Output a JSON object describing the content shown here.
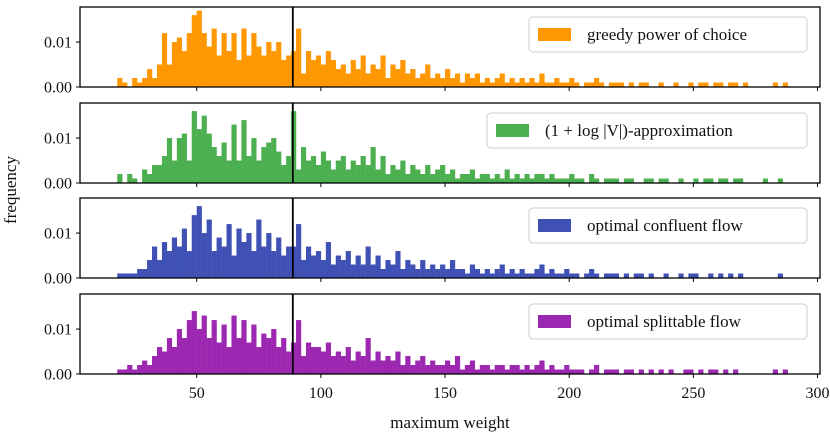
{
  "chart_data": {
    "type": "bar",
    "subtype": "stacked-panels-histogram",
    "xlabel": "maximum weight",
    "ylabel": "frequency",
    "xlim": [
      3,
      301
    ],
    "ylim": [
      0,
      0.0178
    ],
    "xticks": [
      50,
      100,
      150,
      200,
      250,
      300
    ],
    "xtick_labels": [
      "50",
      "100",
      "150",
      "200",
      "250",
      "300"
    ],
    "yticks": [
      0.0,
      0.01
    ],
    "ytick_labels": [
      "0.00",
      "0.01"
    ],
    "vertical_line_x": 88.7,
    "bin_start": 18,
    "bin_width": 2,
    "legend_placement": "top-right",
    "grid": false,
    "series": [
      {
        "name": "greedy power of choice",
        "color": "#ff9800",
        "values": [
          0.002,
          0.001,
          0,
          0.002,
          0.001,
          0.002,
          0.004,
          0.002,
          0.005,
          0.012,
          0.005,
          0.01,
          0.011,
          0.008,
          0.012,
          0.016,
          0.017,
          0.012,
          0.009,
          0.013,
          0.007,
          0.012,
          0.008,
          0.012,
          0.006,
          0.013,
          0.007,
          0.012,
          0.009,
          0.007,
          0.01,
          0.008,
          0.01,
          0.006,
          0.007,
          0.008,
          0.013,
          0.003,
          0.008,
          0.006,
          0.007,
          0.005,
          0.008,
          0.006,
          0.004,
          0.005,
          0.003,
          0.006,
          0.004,
          0.007,
          0.003,
          0.005,
          0.004,
          0.007,
          0.002,
          0.005,
          0.004,
          0.006,
          0.003,
          0.004,
          0.002,
          0.003,
          0.005,
          0.002,
          0.003,
          0.002,
          0.004,
          0.002,
          0.003,
          0.001,
          0.003,
          0.002,
          0.003,
          0.001,
          0.002,
          0.001,
          0.002,
          0.003,
          0.001,
          0.002,
          0.001,
          0.002,
          0.001,
          0.002,
          0.001,
          0.003,
          0.001,
          0.001,
          0.002,
          0.001,
          0.001,
          0.002,
          0.001,
          0,
          0.001,
          0.001,
          0.002,
          0.001,
          0,
          0.001,
          0.001,
          0.001,
          0,
          0.001,
          0,
          0.001,
          0.001,
          0,
          0,
          0.001,
          0,
          0,
          0.001,
          0,
          0,
          0.001,
          0,
          0.001,
          0.001,
          0,
          0.001,
          0.001,
          0,
          0.001,
          0.001,
          0,
          0.001,
          0,
          0,
          0,
          0,
          0,
          0.001,
          0,
          0.001
        ]
      },
      {
        "name": "(1 + log |V|)-approximation",
        "color": "#4caf50",
        "values": [
          0.002,
          0,
          0.002,
          0.001,
          0,
          0.003,
          0.002,
          0.004,
          0.004,
          0.006,
          0.01,
          0.005,
          0.01,
          0.011,
          0.005,
          0.016,
          0.012,
          0.015,
          0.011,
          0.008,
          0.006,
          0.009,
          0.005,
          0.013,
          0.005,
          0.014,
          0.006,
          0.01,
          0.005,
          0.008,
          0.009,
          0.01,
          0.007,
          0.004,
          0.006,
          0.016,
          0.003,
          0.008,
          0.005,
          0.006,
          0.004,
          0.007,
          0.005,
          0.003,
          0.005,
          0.006,
          0.003,
          0.005,
          0.004,
          0.006,
          0.004,
          0.008,
          0.003,
          0.006,
          0.002,
          0.004,
          0.003,
          0.005,
          0.002,
          0.004,
          0.003,
          0.002,
          0.004,
          0.002,
          0.003,
          0.004,
          0.002,
          0.003,
          0.001,
          0.002,
          0.002,
          0.003,
          0.001,
          0.002,
          0.002,
          0.001,
          0.002,
          0.001,
          0.003,
          0.001,
          0.002,
          0.001,
          0.002,
          0.001,
          0.002,
          0.002,
          0.001,
          0.002,
          0.001,
          0.001,
          0.001,
          0.002,
          0.001,
          0.001,
          0,
          0.002,
          0.001,
          0,
          0.001,
          0.001,
          0.001,
          0,
          0.001,
          0.001,
          0,
          0,
          0.001,
          0.001,
          0,
          0.001,
          0.001,
          0,
          0,
          0.001,
          0,
          0,
          0.001,
          0,
          0.001,
          0.001,
          0,
          0.001,
          0.001,
          0,
          0.001,
          0.001,
          0,
          0,
          0,
          0,
          0.001,
          0,
          0,
          0.001,
          0
        ]
      },
      {
        "name": "optimal confluent flow",
        "color": "#3f51b5",
        "values": [
          0.001,
          0.001,
          0.001,
          0.001,
          0.002,
          0.002,
          0.004,
          0.007,
          0.004,
          0.008,
          0.006,
          0.009,
          0.007,
          0.011,
          0.006,
          0.014,
          0.016,
          0.01,
          0.013,
          0.006,
          0.009,
          0.007,
          0.012,
          0.005,
          0.011,
          0.008,
          0.01,
          0.006,
          0.013,
          0.007,
          0.01,
          0.006,
          0.009,
          0.005,
          0.007,
          0.007,
          0.012,
          0.004,
          0.007,
          0.005,
          0.006,
          0.004,
          0.008,
          0.003,
          0.005,
          0.004,
          0.006,
          0.003,
          0.005,
          0.003,
          0.007,
          0.003,
          0.005,
          0.002,
          0.004,
          0.003,
          0.006,
          0.002,
          0.004,
          0.003,
          0.002,
          0.004,
          0.002,
          0.003,
          0.002,
          0.003,
          0.002,
          0.004,
          0.002,
          0.002,
          0.001,
          0.003,
          0.002,
          0.001,
          0.002,
          0.001,
          0.002,
          0.003,
          0.001,
          0.002,
          0.001,
          0.002,
          0.001,
          0.001,
          0.002,
          0.003,
          0.001,
          0.002,
          0.001,
          0.001,
          0.002,
          0.001,
          0.001,
          0,
          0.001,
          0.002,
          0.001,
          0,
          0.001,
          0.001,
          0.001,
          0,
          0.001,
          0,
          0.001,
          0.001,
          0,
          0.001,
          0,
          0,
          0.001,
          0,
          0,
          0.001,
          0,
          0.001,
          0.001,
          0,
          0,
          0.001,
          0,
          0.001,
          0,
          0.001,
          0,
          0.001,
          0,
          0,
          0,
          0,
          0,
          0,
          0,
          0.001,
          0
        ]
      },
      {
        "name": "optimal splittable flow",
        "color": "#9c27b0",
        "values": [
          0.001,
          0.001,
          0.002,
          0.001,
          0.002,
          0.003,
          0.002,
          0.004,
          0.006,
          0.005,
          0.008,
          0.006,
          0.01,
          0.008,
          0.012,
          0.014,
          0.01,
          0.013,
          0.008,
          0.012,
          0.007,
          0.011,
          0.006,
          0.013,
          0.008,
          0.012,
          0.007,
          0.011,
          0.006,
          0.009,
          0.008,
          0.01,
          0.006,
          0.008,
          0.005,
          0.007,
          0.012,
          0.004,
          0.007,
          0.006,
          0.006,
          0.005,
          0.007,
          0.004,
          0.005,
          0.004,
          0.006,
          0.003,
          0.005,
          0.004,
          0.008,
          0.003,
          0.005,
          0.003,
          0.004,
          0.003,
          0.005,
          0.002,
          0.004,
          0.002,
          0.003,
          0.004,
          0.002,
          0.003,
          0.002,
          0.002,
          0.003,
          0.002,
          0.004,
          0.001,
          0.002,
          0.003,
          0.001,
          0.002,
          0.002,
          0.001,
          0.002,
          0.002,
          0.001,
          0.002,
          0.002,
          0.001,
          0.002,
          0.001,
          0.002,
          0.003,
          0.001,
          0.002,
          0.001,
          0.001,
          0.002,
          0.001,
          0.001,
          0.001,
          0,
          0.001,
          0.002,
          0,
          0.001,
          0.001,
          0.001,
          0,
          0.001,
          0.001,
          0,
          0.001,
          0,
          0.001,
          0,
          0.001,
          0,
          0.001,
          0,
          0,
          0.001,
          0.001,
          0,
          0.001,
          0,
          0.001,
          0.001,
          0,
          0.001,
          0,
          0.001,
          0,
          0,
          0,
          0,
          0,
          0,
          0,
          0.001,
          0,
          0.001
        ]
      }
    ]
  }
}
